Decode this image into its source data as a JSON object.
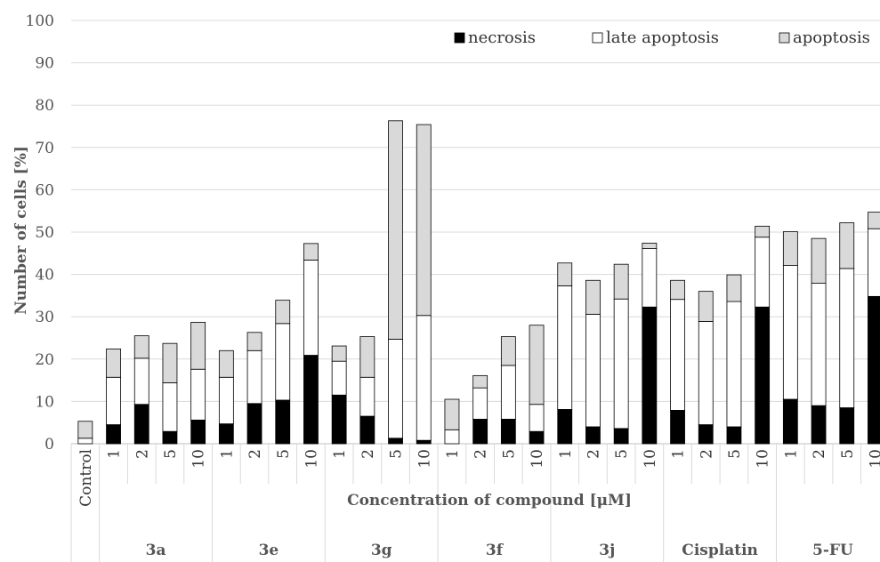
{
  "chart_data": {
    "type": "bar",
    "stacked": true,
    "ylabel": "Number of cells [%]",
    "xlabel": "Concentration of compound [μM]",
    "ylim": [
      0,
      100
    ],
    "yticks": [
      0,
      10,
      20,
      30,
      40,
      50,
      60,
      70,
      80,
      90,
      100
    ],
    "grid": true,
    "legend_position": "top-right",
    "legend": [
      "necrosis",
      "late apoptosis",
      "apoptosis"
    ],
    "groups": [
      {
        "name": "",
        "categories": [
          "Control"
        ]
      },
      {
        "name": "3a",
        "categories": [
          "1",
          "2",
          "5",
          "10"
        ]
      },
      {
        "name": "3e",
        "categories": [
          "1",
          "2",
          "5",
          "10"
        ]
      },
      {
        "name": "3g",
        "categories": [
          "1",
          "2",
          "5",
          "10"
        ]
      },
      {
        "name": "3f",
        "categories": [
          "1",
          "2",
          "5",
          "10"
        ]
      },
      {
        "name": "3j",
        "categories": [
          "1",
          "2",
          "5",
          "10"
        ]
      },
      {
        "name": "Cisplatin",
        "categories": [
          "1",
          "2",
          "5",
          "10"
        ]
      },
      {
        "name": "5-FU",
        "categories": [
          "1",
          "2",
          "5",
          "10"
        ]
      }
    ],
    "series": [
      {
        "name": "necrosis",
        "color": "#000000",
        "values": [
          0,
          4.5,
          9.3,
          2.9,
          5.6,
          4.7,
          9.5,
          10.3,
          20.9,
          11.5,
          6.5,
          1.3,
          0.8,
          0,
          5.8,
          5.8,
          2.9,
          8.1,
          4.0,
          3.6,
          32.3,
          7.9,
          4.5,
          4.0,
          32.3,
          10.5,
          9.0,
          8.5,
          34.8
        ]
      },
      {
        "name": "late apoptosis",
        "color": "#ffffff",
        "values": [
          1.3,
          11.2,
          10.9,
          11.5,
          12.0,
          11.0,
          12.5,
          18.1,
          22.5,
          8.0,
          9.2,
          23.4,
          29.5,
          3.3,
          7.4,
          12.7,
          6.4,
          29.2,
          26.6,
          30.6,
          13.8,
          26.2,
          24.4,
          29.6,
          16.5,
          31.6,
          28.9,
          32.9,
          16.0
        ]
      },
      {
        "name": "apoptosis",
        "color": "#d9d9d9",
        "values": [
          4.0,
          6.7,
          5.3,
          9.3,
          11.1,
          6.3,
          4.3,
          5.5,
          3.9,
          3.6,
          9.6,
          51.6,
          45.1,
          7.2,
          2.9,
          6.8,
          18.7,
          5.4,
          8.0,
          8.2,
          1.3,
          4.5,
          7.1,
          6.3,
          2.6,
          8.0,
          10.6,
          10.8,
          3.9
        ]
      }
    ]
  }
}
